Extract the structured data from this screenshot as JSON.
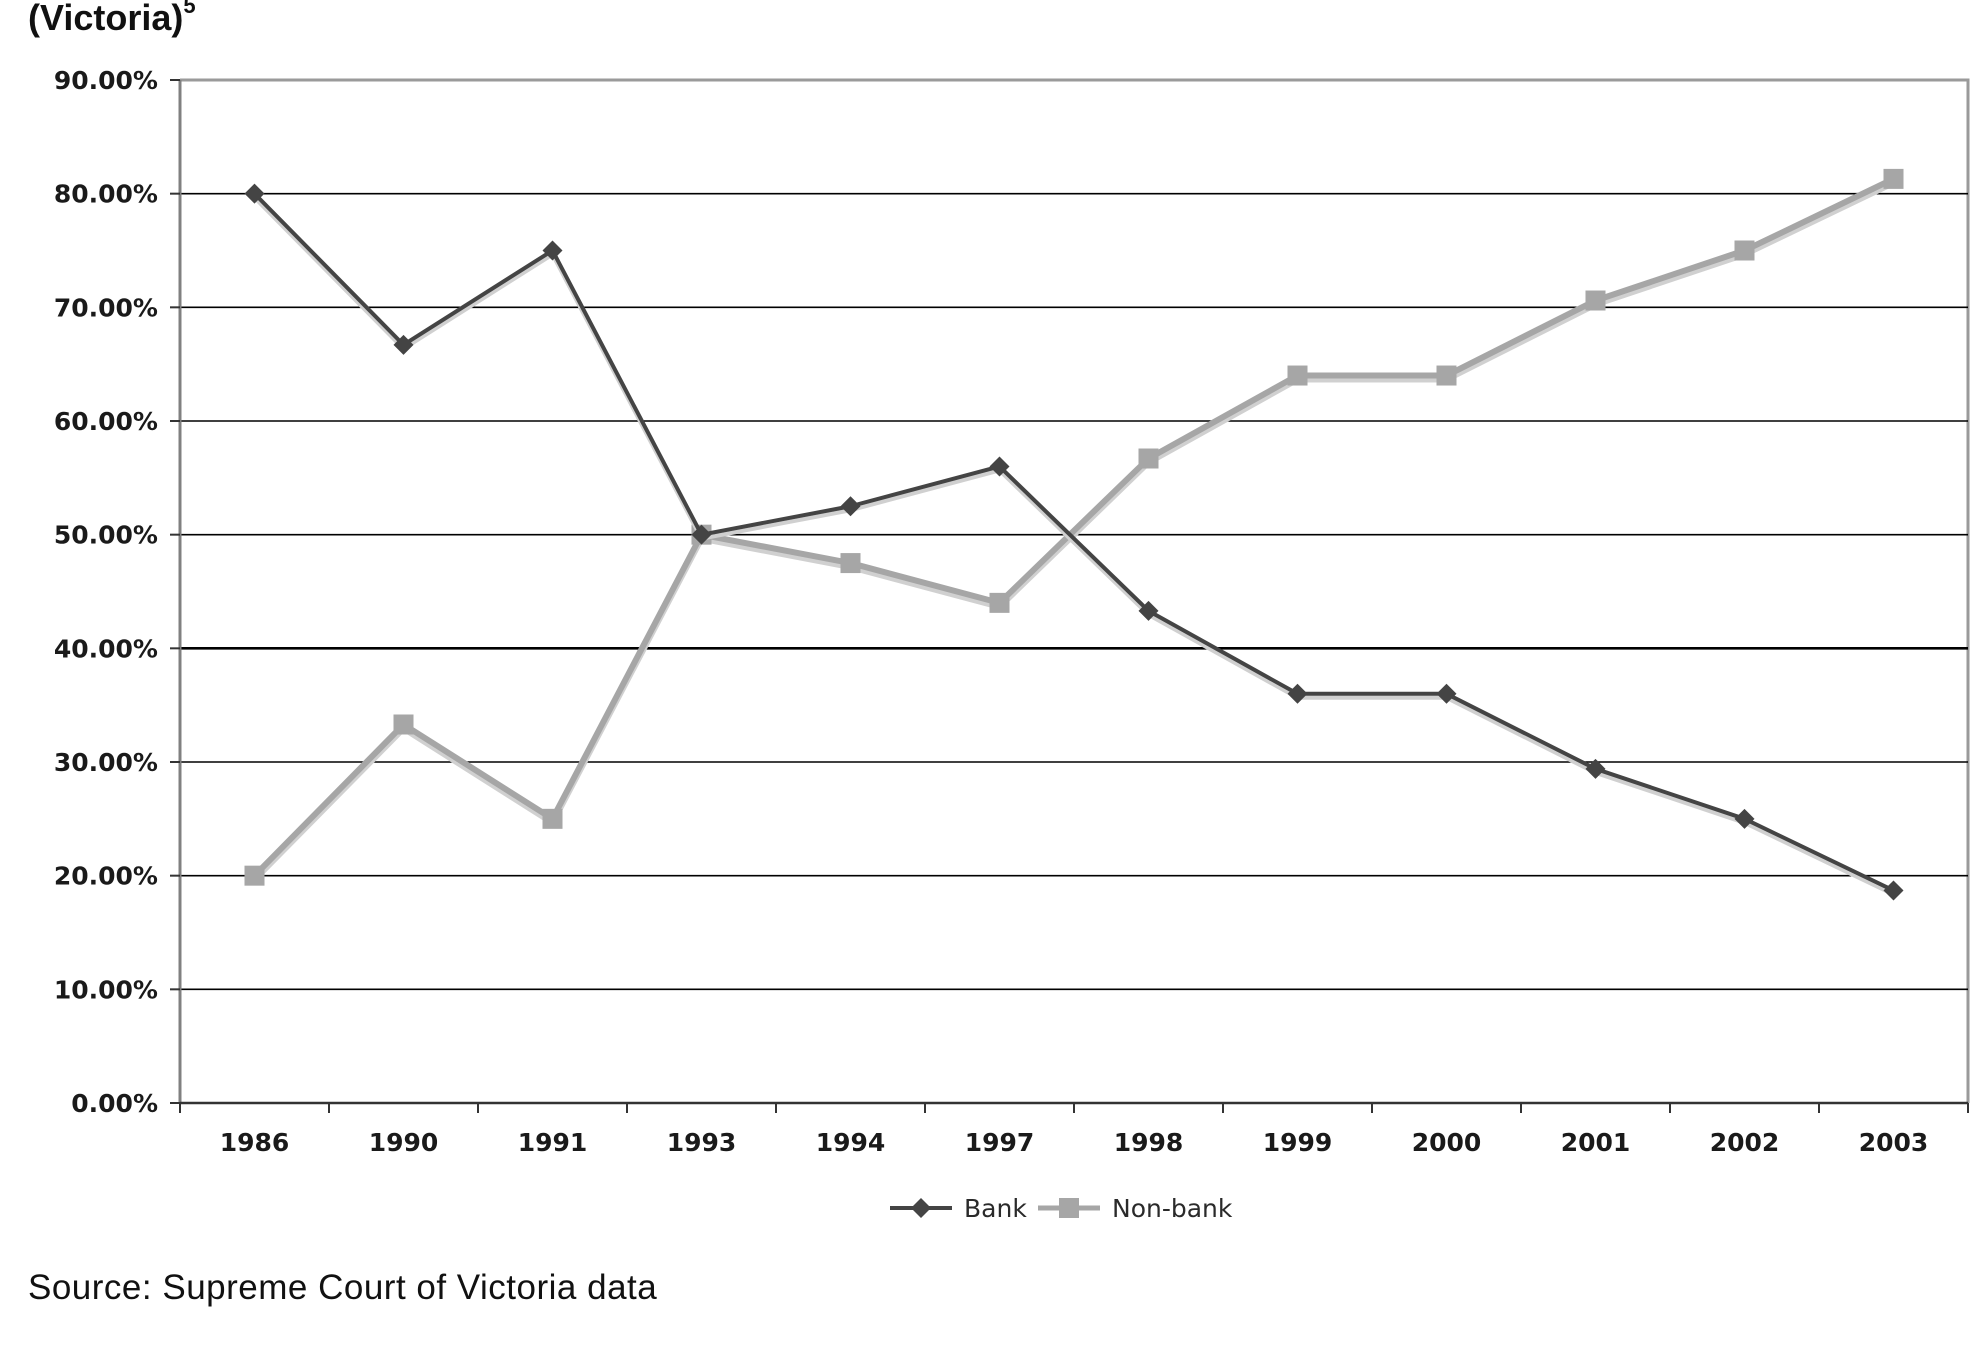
{
  "header": {
    "title_fragment": "(Victoria)",
    "title_superscript": "5"
  },
  "source": "Source: Supreme Court of Victoria data",
  "chart_data": {
    "type": "line",
    "categories": [
      "1986",
      "1990",
      "1991",
      "1993",
      "1994",
      "1997",
      "1998",
      "1999",
      "2000",
      "2001",
      "2002",
      "2003"
    ],
    "y_tick_labels": [
      "0.00%",
      "10.00%",
      "20.00%",
      "30.00%",
      "40.00%",
      "50.00%",
      "60.00%",
      "70.00%",
      "80.00%",
      "90.00%"
    ],
    "ylim": [
      0,
      90
    ],
    "y_unit": "%",
    "grid": "horizontal",
    "legend_position": "bottom",
    "series": [
      {
        "name": "Bank",
        "color": "#444444",
        "marker": "diamond",
        "values": [
          80.0,
          66.7,
          75.0,
          50.0,
          52.5,
          56.0,
          43.3,
          36.0,
          36.0,
          29.4,
          25.0,
          18.7
        ]
      },
      {
        "name": "Non-bank",
        "color": "#a6a6a6",
        "marker": "square",
        "values": [
          20.0,
          33.3,
          25.0,
          50.0,
          47.5,
          44.0,
          56.7,
          64.0,
          64.0,
          70.6,
          75.0,
          81.3
        ]
      }
    ]
  }
}
